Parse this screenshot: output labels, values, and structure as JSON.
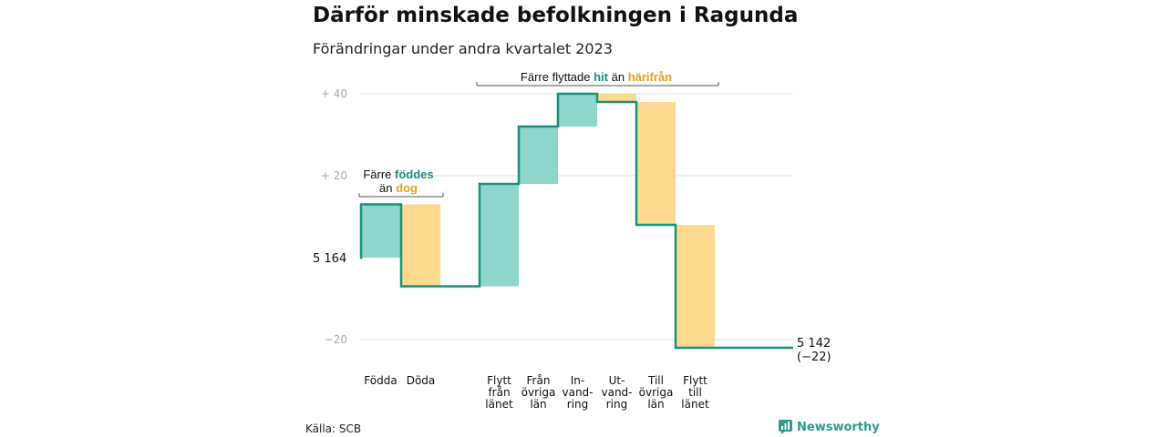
{
  "title": "Därför minskade befolkningen i Ragunda",
  "subtitle": "Förändringar under andra kvartalet 2023",
  "source": "Källa: SCB",
  "brand": "Newsworthy",
  "colors": {
    "teal_fill": "#8ed6cc",
    "teal_line": "#17917e",
    "orange_fill": "#fcd98f",
    "orange_text": "#e8a018",
    "teal_text": "#17917e",
    "grid": "#e2e2e2"
  },
  "chart_data": {
    "type": "waterfall",
    "start_value": 5164,
    "start_label": "5 164",
    "end_value": 5142,
    "end_label": "5 142",
    "end_change_label": "(−22)",
    "ylim": [
      -24,
      42
    ],
    "yticks": [
      {
        "value": 40,
        "label": "+  40"
      },
      {
        "value": 20,
        "label": "+  20"
      },
      {
        "value": -20,
        "label": "−20"
      }
    ],
    "steps": [
      {
        "label": [
          "Födda"
        ],
        "change": 13,
        "kind": "inflow"
      },
      {
        "label": [
          "Döda"
        ],
        "change": -20,
        "kind": "outflow"
      },
      {
        "label": [
          "Flytt",
          "från",
          "länet"
        ],
        "change": 25,
        "kind": "inflow"
      },
      {
        "label": [
          "Från",
          "övriga",
          "län"
        ],
        "change": 14,
        "kind": "inflow"
      },
      {
        "label": [
          "In-",
          "vand-",
          "ring"
        ],
        "change": 8,
        "kind": "inflow"
      },
      {
        "label": [
          "Ut-",
          "vand-",
          "ring"
        ],
        "change": -2,
        "kind": "outflow"
      },
      {
        "label": [
          "Till",
          "övriga",
          "län"
        ],
        "change": -30,
        "kind": "outflow"
      },
      {
        "label": [
          "Flytt",
          "till",
          "länet"
        ],
        "change": -30,
        "kind": "outflow"
      }
    ],
    "annotations": [
      {
        "parts": [
          {
            "text": "Färre ",
            "style": "plain"
          },
          {
            "text": "föddes",
            "style": "teal"
          }
        ],
        "parts2": [
          {
            "text": "än ",
            "style": "plain"
          },
          {
            "text": "dog",
            "style": "orange"
          }
        ]
      },
      {
        "parts": [
          {
            "text": "Färre flyttade ",
            "style": "plain"
          },
          {
            "text": "hit",
            "style": "teal"
          },
          {
            "text": "  än ",
            "style": "plain"
          },
          {
            "text": "härifrån",
            "style": "orange"
          }
        ]
      }
    ]
  }
}
